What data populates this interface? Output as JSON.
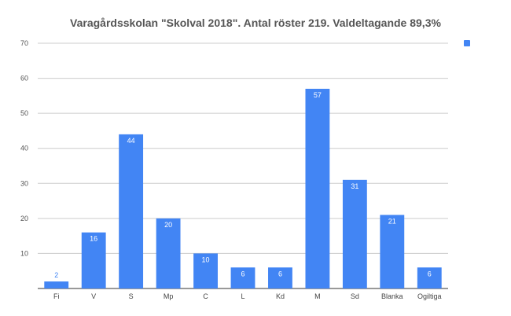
{
  "chart_data": {
    "type": "bar",
    "title": "Varagårdsskolan \"Skolval 2018\". Antal röster 219. Valdeltagande 89,3%",
    "xlabel": "",
    "ylabel": "",
    "categories": [
      "Fi",
      "V",
      "S",
      "Mp",
      "C",
      "L",
      "Kd",
      "M",
      "Sd",
      "Blanka",
      "Ogiltiga"
    ],
    "series": [
      {
        "values": [
          2,
          16,
          44,
          20,
          10,
          6,
          6,
          57,
          31,
          21,
          6
        ]
      }
    ],
    "ylim": [
      0,
      70
    ],
    "yticks": [
      10,
      20,
      30,
      40,
      50,
      60,
      70
    ],
    "grid": true,
    "legend": "right",
    "colors": {
      "bar": "#4285f4",
      "grid": "#cccccc",
      "label_inside": "#ffffff",
      "label_outside": "#4285f4"
    }
  }
}
